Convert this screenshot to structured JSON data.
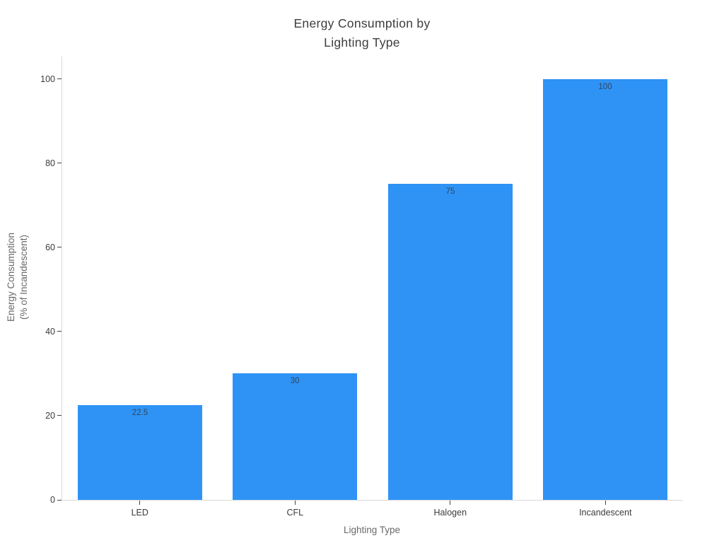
{
  "chart_data": {
    "type": "bar",
    "title": "Energy Consumption by Lighting Type",
    "title_lines": [
      "Energy Consumption by",
      "Lighting Type"
    ],
    "xlabel": "Lighting Type",
    "ylabel": "Energy Consumption (% of Incandescent)",
    "ylabel_lines": [
      "Energy Consumption",
      "(% of Incandescent)"
    ],
    "categories": [
      "LED",
      "CFL",
      "Halogen",
      "Incandescent"
    ],
    "values": [
      22.5,
      30,
      75,
      100
    ],
    "value_labels": [
      "22.5",
      "30",
      "75",
      "100"
    ],
    "yticks": [
      0,
      20,
      40,
      60,
      80,
      100
    ],
    "ylim": [
      0,
      105.3
    ],
    "grid": false,
    "legend": "none",
    "bar_width_fraction": 0.8,
    "colors": {
      "bar": "#2E93F5",
      "bar_label": "#33455c",
      "axis_line": "#d9d9d9",
      "tick_mark": "#444444",
      "tick_label": "#3b3b3b",
      "axis_title": "#696969",
      "title": "#3d3d3d",
      "background": "#ffffff"
    }
  }
}
